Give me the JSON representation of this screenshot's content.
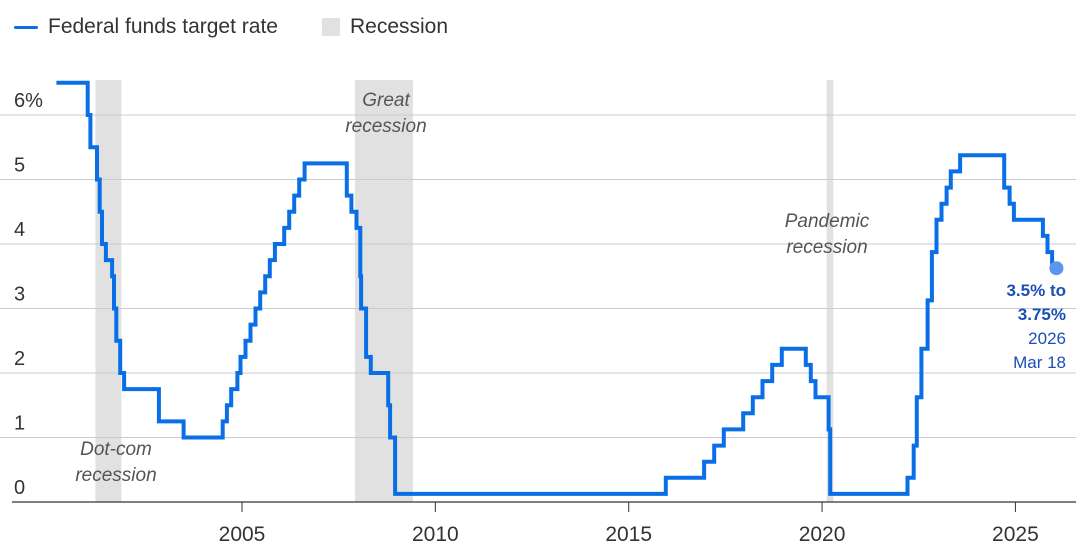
{
  "legend": {
    "series_label": "Federal funds target rate",
    "recession_label": "Recession"
  },
  "colors": {
    "series": "#0a6fe6",
    "recession": "#e1e1e1",
    "grid": "#cccccc",
    "end_label": "#1a4fb5",
    "end_dot": "#5b95ee"
  },
  "chart_data": {
    "type": "line",
    "series": [
      {
        "name": "Federal funds target rate",
        "step": true,
        "points": [
          [
            2000.2,
            6.5
          ],
          [
            2001.01,
            6.0
          ],
          [
            2001.08,
            5.5
          ],
          [
            2001.25,
            5.0
          ],
          [
            2001.32,
            4.5
          ],
          [
            2001.38,
            4.0
          ],
          [
            2001.48,
            3.75
          ],
          [
            2001.64,
            3.5
          ],
          [
            2001.69,
            3.0
          ],
          [
            2001.75,
            2.5
          ],
          [
            2001.85,
            2.0
          ],
          [
            2001.95,
            1.75
          ],
          [
            2002.85,
            1.25
          ],
          [
            2003.49,
            1.0
          ],
          [
            2004.5,
            1.25
          ],
          [
            2004.61,
            1.5
          ],
          [
            2004.72,
            1.75
          ],
          [
            2004.88,
            2.0
          ],
          [
            2004.96,
            2.25
          ],
          [
            2005.09,
            2.5
          ],
          [
            2005.22,
            2.75
          ],
          [
            2005.35,
            3.0
          ],
          [
            2005.47,
            3.25
          ],
          [
            2005.6,
            3.5
          ],
          [
            2005.72,
            3.75
          ],
          [
            2005.85,
            4.0
          ],
          [
            2006.09,
            4.25
          ],
          [
            2006.22,
            4.5
          ],
          [
            2006.35,
            4.75
          ],
          [
            2006.48,
            5.0
          ],
          [
            2006.62,
            5.25
          ],
          [
            2007.71,
            4.75
          ],
          [
            2007.83,
            4.5
          ],
          [
            2007.96,
            4.25
          ],
          [
            2008.06,
            3.5
          ],
          [
            2008.08,
            3.0
          ],
          [
            2008.21,
            2.25
          ],
          [
            2008.33,
            2.0
          ],
          [
            2008.78,
            1.5
          ],
          [
            2008.83,
            1.0
          ],
          [
            2008.96,
            0.125
          ],
          [
            2015.96,
            0.375
          ],
          [
            2016.95,
            0.625
          ],
          [
            2017.21,
            0.875
          ],
          [
            2017.46,
            1.125
          ],
          [
            2017.96,
            1.375
          ],
          [
            2018.21,
            1.625
          ],
          [
            2018.46,
            1.875
          ],
          [
            2018.71,
            2.125
          ],
          [
            2018.96,
            2.375
          ],
          [
            2019.58,
            2.125
          ],
          [
            2019.71,
            1.875
          ],
          [
            2019.83,
            1.625
          ],
          [
            2020.17,
            1.125
          ],
          [
            2020.21,
            0.125
          ],
          [
            2022.21,
            0.375
          ],
          [
            2022.37,
            0.875
          ],
          [
            2022.45,
            1.625
          ],
          [
            2022.57,
            2.375
          ],
          [
            2022.73,
            3.125
          ],
          [
            2022.84,
            3.875
          ],
          [
            2022.96,
            4.375
          ],
          [
            2023.09,
            4.625
          ],
          [
            2023.22,
            4.875
          ],
          [
            2023.33,
            5.125
          ],
          [
            2023.57,
            5.375
          ],
          [
            2024.71,
            4.875
          ],
          [
            2024.85,
            4.625
          ],
          [
            2024.96,
            4.375
          ],
          [
            2025.71,
            4.125
          ],
          [
            2025.83,
            3.875
          ],
          [
            2025.95,
            3.625
          ],
          [
            2026.21,
            3.625
          ]
        ]
      }
    ],
    "recessions": [
      {
        "start": 2001.21,
        "end": 2001.88,
        "label": [
          "Dot-com",
          "recession"
        ]
      },
      {
        "start": 2007.92,
        "end": 2009.42,
        "label": [
          "Great",
          "recession"
        ]
      },
      {
        "start": 2020.12,
        "end": 2020.29,
        "label": [
          "Pandemic",
          "recession"
        ]
      }
    ],
    "xlim": [
      1999.9,
      2026.6
    ],
    "ylim": [
      0,
      6.5
    ],
    "x_ticks": [
      {
        "value": 2005,
        "label": "2005"
      },
      {
        "value": 2010,
        "label": "2010"
      },
      {
        "value": 2015,
        "label": "2015"
      },
      {
        "value": 2020,
        "label": "2020"
      },
      {
        "value": 2025,
        "label": "2025"
      }
    ],
    "y_ticks": [
      {
        "value": 0,
        "label": "0"
      },
      {
        "value": 1,
        "label": "1"
      },
      {
        "value": 2,
        "label": "2"
      },
      {
        "value": 3,
        "label": "3"
      },
      {
        "value": 4,
        "label": "4"
      },
      {
        "value": 5,
        "label": "5"
      },
      {
        "value": 6,
        "label": "6%"
      }
    ],
    "grid": true,
    "end_label": {
      "value_lines": [
        "3.5% to",
        "3.75%"
      ],
      "date_lines": [
        "2026",
        "Mar 18"
      ]
    }
  }
}
